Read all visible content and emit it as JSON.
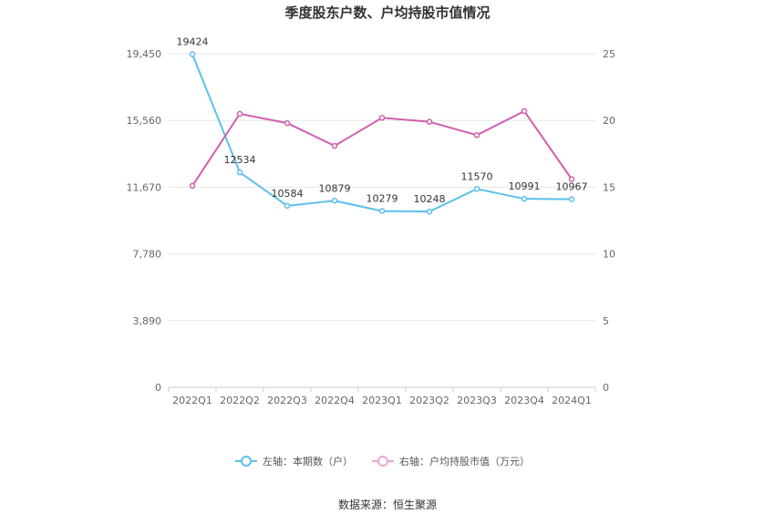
{
  "chart_data": {
    "type": "line",
    "title": "季度股东户数、户均持股市值情况",
    "categories": [
      "2022Q1",
      "2022Q2",
      "2022Q3",
      "2022Q4",
      "2023Q1",
      "2023Q2",
      "2023Q3",
      "2023Q4",
      "2024Q1"
    ],
    "left_axis": {
      "ticks": [
        "0",
        "3,890",
        "7,780",
        "11,670",
        "15,560",
        "19,450"
      ],
      "ylim": [
        0,
        19450
      ]
    },
    "right_axis": {
      "ticks": [
        "0",
        "5",
        "10",
        "15",
        "20",
        "25"
      ],
      "ylim": [
        0,
        25
      ]
    },
    "series": [
      {
        "name": "左轴：本期数（户）",
        "axis": "left",
        "color": "#5bc0eb",
        "values": [
          19424,
          12534,
          10584,
          10879,
          10279,
          10248,
          11570,
          10991,
          10967
        ],
        "labels": [
          "19424",
          "12534",
          "10584",
          "10879",
          "10279",
          "10248",
          "11570",
          "10991",
          "10967"
        ]
      },
      {
        "name": "右轴：户均持股市值（万元）",
        "axis": "right",
        "color": "#d05fae",
        "values": [
          15.1,
          20.5,
          19.8,
          18.1,
          20.2,
          19.9,
          18.9,
          20.7,
          15.6
        ]
      }
    ],
    "grid": true,
    "legend_position": "bottom"
  },
  "source": "数据来源：恒生聚源"
}
